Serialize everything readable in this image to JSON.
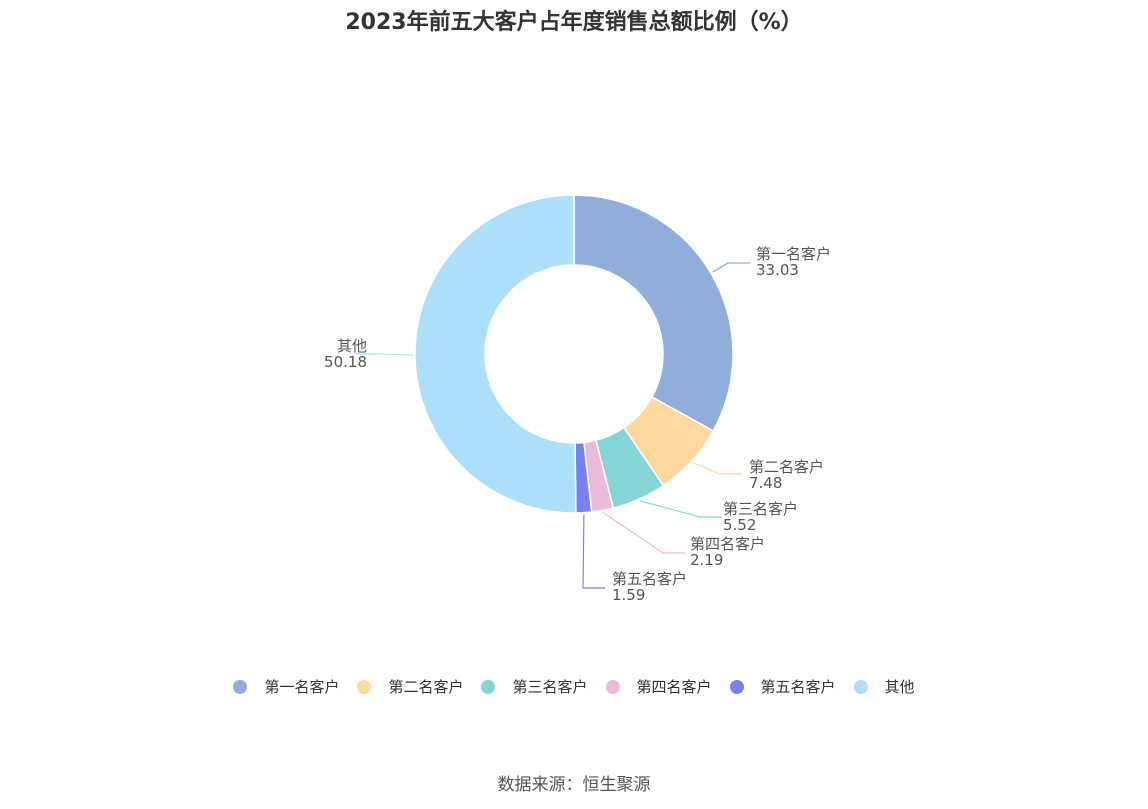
{
  "title": "2023年前五大客户占年度销售总额比例（%）",
  "source": "数据来源：恒生聚源",
  "chart_data": {
    "type": "pie",
    "donut": true,
    "legend_position": "bottom",
    "slices": [
      {
        "name": "第一名客户",
        "value": 33.03,
        "label": "33.03",
        "color": "#8faedc"
      },
      {
        "name": "第二名客户",
        "value": 7.48,
        "label": "7.48",
        "color": "#fed89d"
      },
      {
        "name": "第三名客户",
        "value": 5.52,
        "label": "5.52",
        "color": "#85d4d6"
      },
      {
        "name": "第四名客户",
        "value": 2.19,
        "label": "2.19",
        "color": "#e8bbdb"
      },
      {
        "name": "第五名客户",
        "value": 1.59,
        "label": "1.59",
        "color": "#7a80f2"
      },
      {
        "name": "其他",
        "value": 50.18,
        "label": "50.18",
        "color": "#abdffa"
      }
    ]
  }
}
